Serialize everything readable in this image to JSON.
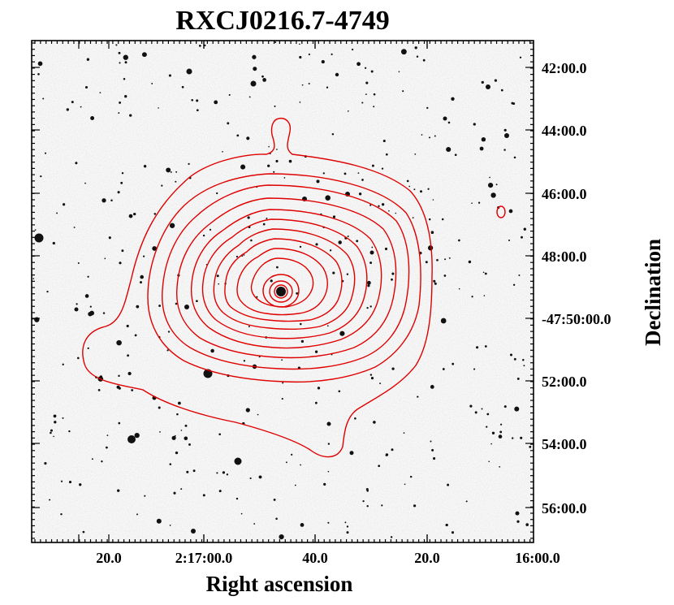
{
  "chart_data": {
    "type": "contour",
    "title": "RXCJ0216.7-4749",
    "xlabel": "Right ascension",
    "ylabel": "Declination",
    "x_ticks": [
      "20.0",
      "2:17:00.0",
      "40.0",
      "20.0",
      "16:00.0"
    ],
    "y_ticks": [
      "42:00.0",
      "44:00.0",
      "46:00.0",
      "48:00.0",
      "-47:50:00.0",
      "52:00.0",
      "54:00.0",
      "56:00.0"
    ],
    "background": "optical sky image (grayscale)",
    "contour_levels": 12,
    "grid": false
  },
  "colors": {
    "contour": "#e00000",
    "sky": "#e2e2e2",
    "frame": "#000000"
  }
}
